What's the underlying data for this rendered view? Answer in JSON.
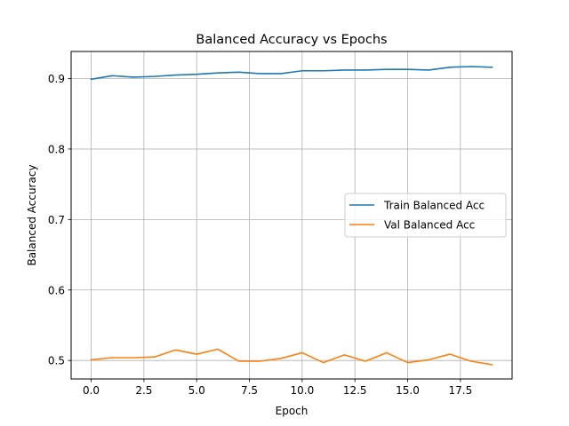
{
  "chart_data": {
    "type": "line",
    "title": "Balanced Accuracy vs Epochs",
    "xlabel": "Epoch",
    "ylabel": "Balanced Accuracy",
    "xlim": [
      -0.95,
      19.95
    ],
    "ylim": [
      0.4738,
      0.9384
    ],
    "xticks": [
      0,
      2.5,
      5,
      7.5,
      10,
      12.5,
      15,
      17.5
    ],
    "xtick_labels": [
      "0.0",
      "2.5",
      "5.0",
      "7.5",
      "10.0",
      "12.5",
      "15.0",
      "17.5"
    ],
    "yticks": [
      0.5,
      0.6,
      0.7,
      0.8,
      0.9
    ],
    "ytick_labels": [
      "0.5",
      "0.6",
      "0.7",
      "0.8",
      "0.9"
    ],
    "grid": true,
    "legend_position": "center-right",
    "x": [
      0,
      1,
      2,
      3,
      4,
      5,
      6,
      7,
      8,
      9,
      10,
      11,
      12,
      13,
      14,
      15,
      16,
      17,
      18,
      19
    ],
    "series": [
      {
        "name": "Train Balanced Acc",
        "color": "#1f77b4",
        "values": [
          0.899,
          0.904,
          0.902,
          0.903,
          0.905,
          0.906,
          0.908,
          0.909,
          0.907,
          0.907,
          0.911,
          0.911,
          0.912,
          0.912,
          0.913,
          0.913,
          0.912,
          0.916,
          0.917,
          0.916
        ]
      },
      {
        "name": "Val Balanced Acc",
        "color": "#ff7f0e",
        "values": [
          0.501,
          0.504,
          0.504,
          0.505,
          0.515,
          0.509,
          0.516,
          0.499,
          0.499,
          0.503,
          0.511,
          0.497,
          0.508,
          0.499,
          0.511,
          0.497,
          0.501,
          0.509,
          0.499,
          0.494
        ]
      }
    ]
  }
}
